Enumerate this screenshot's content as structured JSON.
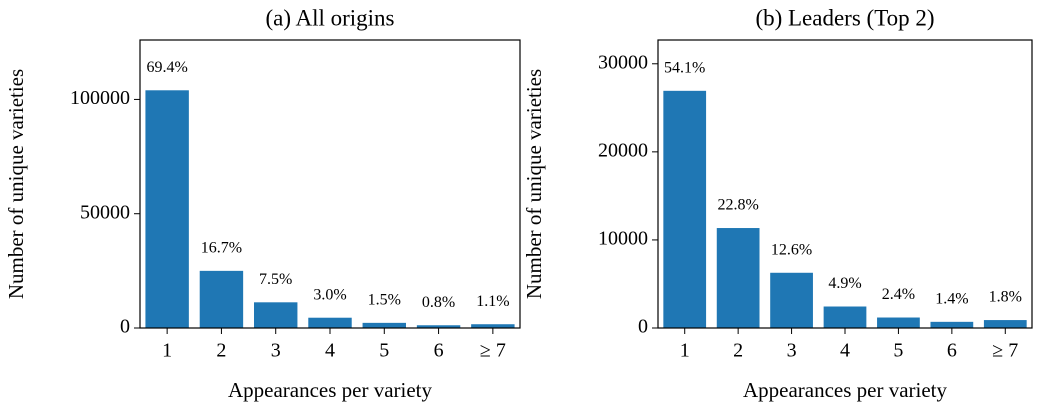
{
  "chart_data": [
    {
      "type": "bar",
      "title": "(a) All origins",
      "xlabel": "Appearances per variety",
      "ylabel": "Number of unique varieties",
      "categories": [
        "1",
        "2",
        "3",
        "4",
        "5",
        "6",
        "≥ 7"
      ],
      "values": [
        104000,
        25000,
        11240,
        4500,
        2250,
        1200,
        1650
      ],
      "value_labels": [
        "69.4%",
        "16.7%",
        "7.5%",
        "3.0%",
        "1.5%",
        "0.8%",
        "1.1%"
      ],
      "color": "#1f77b4",
      "ylim": [
        0,
        126000
      ],
      "yticks": [
        0,
        50000,
        100000
      ]
    },
    {
      "type": "bar",
      "title": "(b) Leaders (Top 2)",
      "xlabel": "Appearances per variety",
      "ylabel": "Number of unique varieties",
      "categories": [
        "1",
        "2",
        "3",
        "4",
        "5",
        "6",
        "≥ 7"
      ],
      "values": [
        26930,
        11350,
        6270,
        2440,
        1190,
        700,
        900
      ],
      "value_labels": [
        "54.1%",
        "22.8%",
        "12.6%",
        "4.9%",
        "2.4%",
        "1.4%",
        "1.8%"
      ],
      "color": "#1f77b4",
      "ylim": [
        0,
        32700
      ],
      "yticks": [
        0,
        10000,
        20000,
        30000
      ]
    }
  ]
}
